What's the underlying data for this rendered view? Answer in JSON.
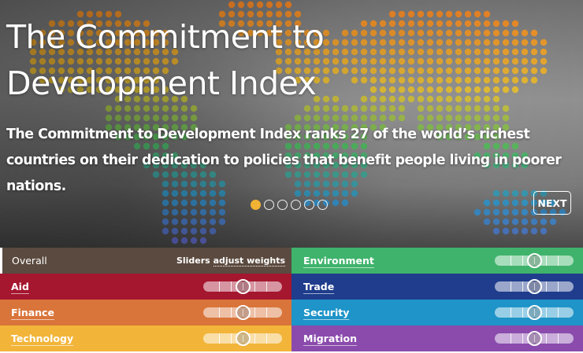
{
  "hero": {
    "title": "The Commitment to Development Index",
    "subtitle": "The Commitment to Development Index ranks 27 of the world’s richest countries on their dedication to policies that benefit people living in poorer nations.",
    "carousel": {
      "slide_count": 6,
      "active_index": 0
    },
    "next_label": "NEXT",
    "colors": {
      "active_dot": "#f2b233"
    }
  },
  "panel": {
    "overall": {
      "label": "Overall",
      "hint_prefix": "Sliders ",
      "hint_link": "adjust weights",
      "color": "#5b4a3f"
    },
    "components": [
      {
        "id": "aid",
        "label": "Aid",
        "color": "#a5162f",
        "weight": 0.5
      },
      {
        "id": "finance",
        "label": "Finance",
        "color": "#d9743a",
        "weight": 0.5
      },
      {
        "id": "technology",
        "label": "Technology",
        "color": "#f2b53a",
        "weight": 0.5
      },
      {
        "id": "environment",
        "label": "Environment",
        "color": "#3fb36c",
        "weight": 0.5
      },
      {
        "id": "trade",
        "label": "Trade",
        "color": "#1f3d8c",
        "weight": 0.5
      },
      {
        "id": "security",
        "label": "Security",
        "color": "#1e94c8",
        "weight": 0.5
      },
      {
        "id": "migration",
        "label": "Migration",
        "color": "#8a4bad",
        "weight": 0.5
      }
    ]
  }
}
